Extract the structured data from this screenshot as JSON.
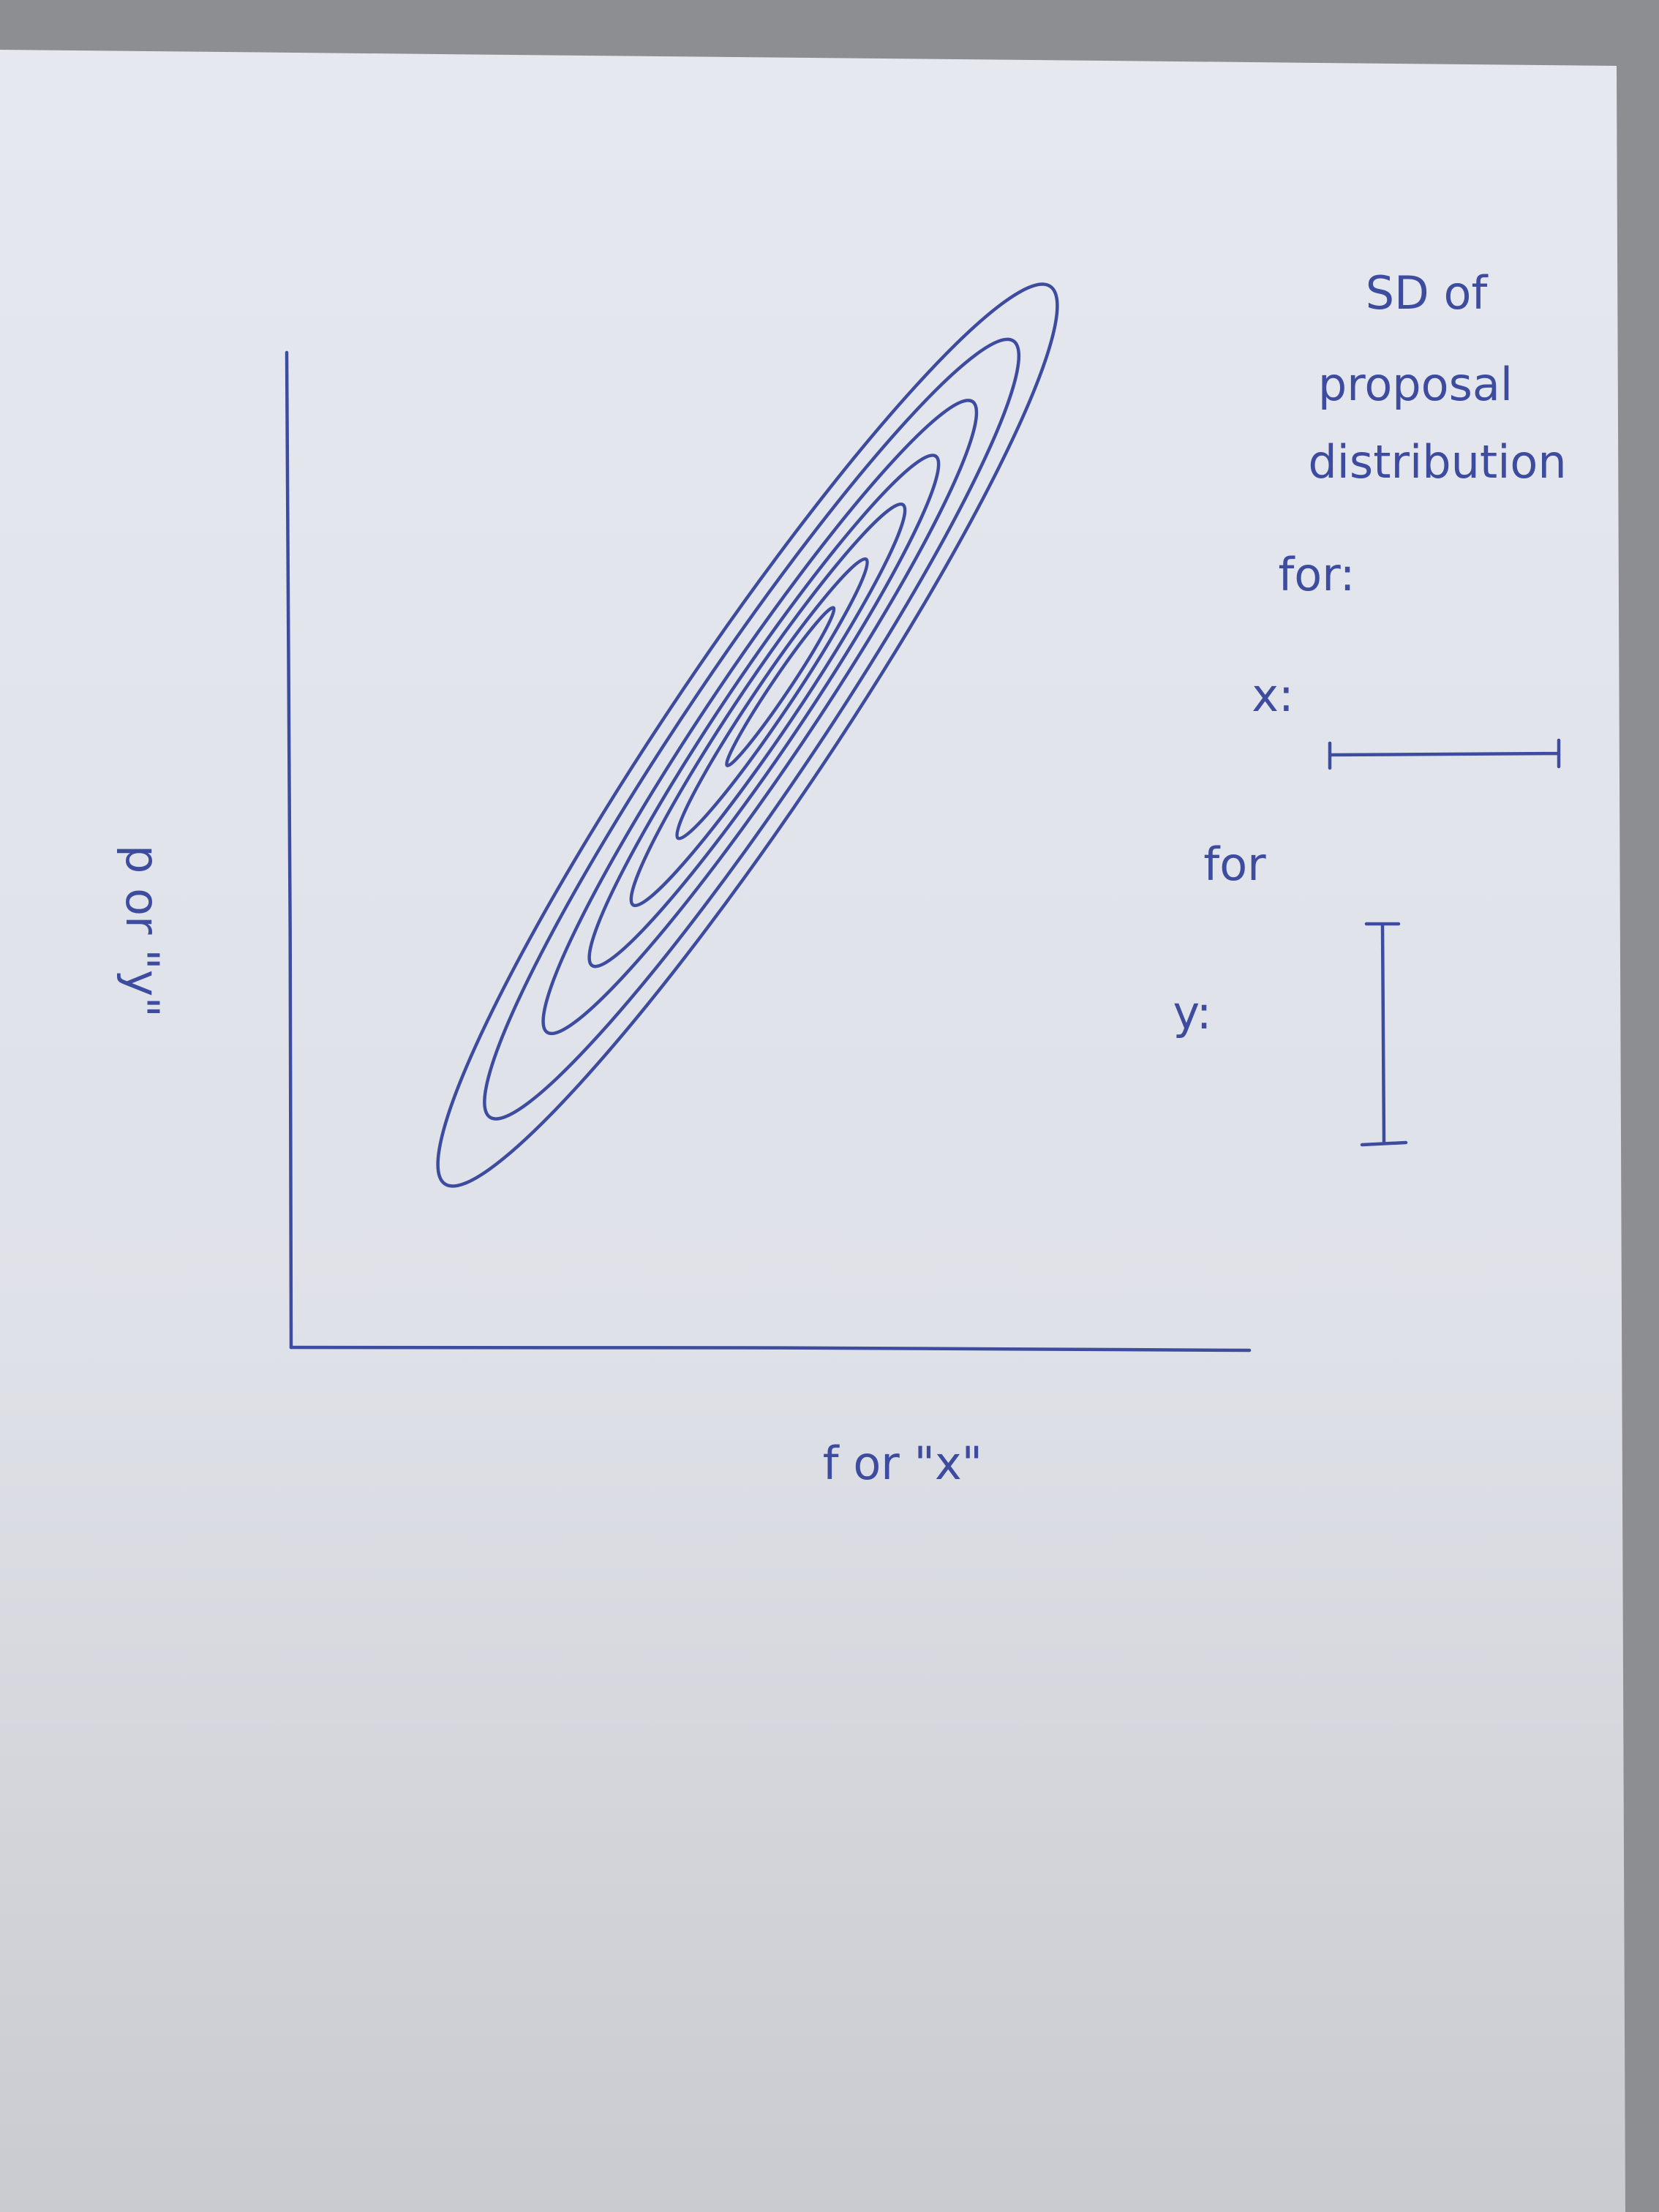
{
  "annotation": {
    "lines": [
      "SD of",
      "proposal",
      "distribution"
    ]
  },
  "legend": {
    "x": {
      "for": "for:",
      "label": "x:"
    },
    "y": {
      "for": "for",
      "label": "y:"
    }
  },
  "axes": {
    "x_label": "f or \"x\"",
    "y_label": "p or \"y\""
  }
}
